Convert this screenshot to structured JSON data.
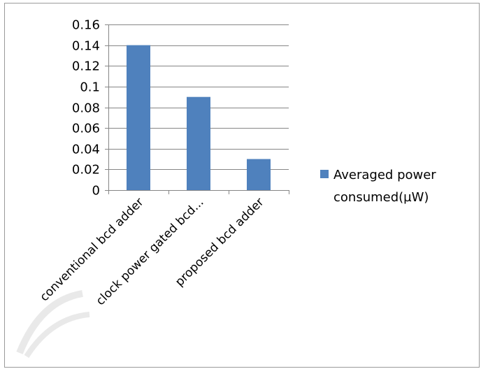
{
  "chart_data": {
    "type": "bar",
    "categories": [
      "conventional bcd adder",
      "clock power gated bcd...",
      "proposed bcd adder"
    ],
    "series": [
      {
        "name": "Averaged power consumed(µW)",
        "values": [
          0.14,
          0.09,
          0.03
        ]
      }
    ],
    "y_ticks": [
      "0",
      "0.02",
      "0.04",
      "0.06",
      "0.08",
      "0.1",
      "0.12",
      "0.14",
      "0.16"
    ],
    "ylim": [
      0,
      0.16
    ],
    "grid": true,
    "legend_position": "right",
    "legend_lines": [
      "Averaged power",
      "consumed(µW)"
    ],
    "bar_color": "#4f81bd",
    "gridline_color": "#868686"
  }
}
